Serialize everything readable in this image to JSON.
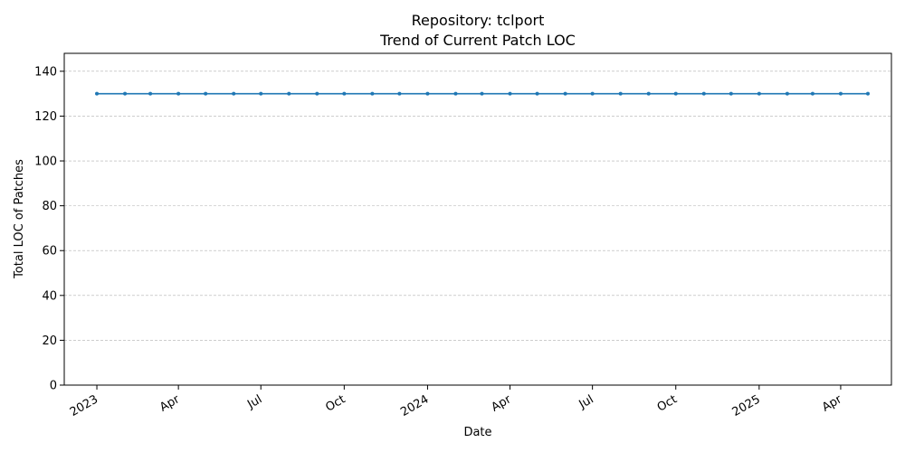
{
  "chart_data": {
    "type": "line",
    "title": "Repository: tclport",
    "subtitle": "Trend of Current Patch LOC",
    "xlabel": "Date",
    "ylabel": "Total LOC of Patches",
    "ylim": [
      0,
      148
    ],
    "xlim": [
      "2022-11-26",
      "2025-05-27"
    ],
    "grid": "horizontal-dashed",
    "line_color": "#1f77b4",
    "x_ticks": [
      {
        "date": "2023-01-01",
        "label": "2023"
      },
      {
        "date": "2023-04-01",
        "label": "Apr"
      },
      {
        "date": "2023-07-01",
        "label": "Jul"
      },
      {
        "date": "2023-10-01",
        "label": "Oct"
      },
      {
        "date": "2024-01-01",
        "label": "2024"
      },
      {
        "date": "2024-04-01",
        "label": "Apr"
      },
      {
        "date": "2024-07-01",
        "label": "Jul"
      },
      {
        "date": "2024-10-01",
        "label": "Oct"
      },
      {
        "date": "2025-01-01",
        "label": "2025"
      },
      {
        "date": "2025-04-01",
        "label": "Apr"
      }
    ],
    "y_ticks": [
      0,
      20,
      40,
      60,
      80,
      100,
      120,
      140
    ],
    "x": [
      "2023-01-01",
      "2023-02-01",
      "2023-03-01",
      "2023-04-01",
      "2023-05-01",
      "2023-06-01",
      "2023-07-01",
      "2023-08-01",
      "2023-09-01",
      "2023-10-01",
      "2023-11-01",
      "2023-12-01",
      "2024-01-01",
      "2024-02-01",
      "2024-03-01",
      "2024-04-01",
      "2024-05-01",
      "2024-06-01",
      "2024-07-01",
      "2024-08-01",
      "2024-09-01",
      "2024-10-01",
      "2024-11-01",
      "2024-12-01",
      "2025-01-01",
      "2025-02-01",
      "2025-03-01",
      "2025-04-01",
      "2025-05-01"
    ],
    "series": [
      {
        "values": [
          130,
          130,
          130,
          130,
          130,
          130,
          130,
          130,
          130,
          130,
          130,
          130,
          130,
          130,
          130,
          130,
          130,
          130,
          130,
          130,
          130,
          130,
          130,
          130,
          130,
          130,
          130,
          130,
          130
        ]
      }
    ]
  }
}
